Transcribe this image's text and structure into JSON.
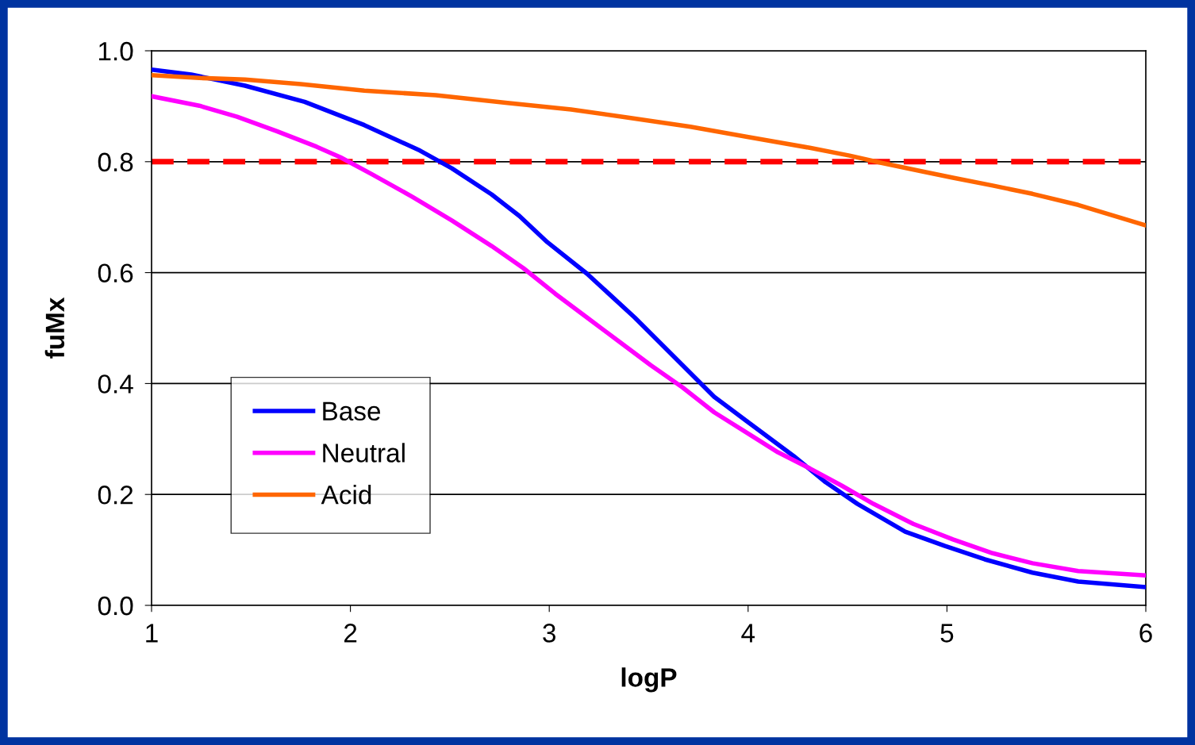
{
  "chart_data": {
    "type": "line",
    "xlabel": "logP",
    "ylabel": "fuMx",
    "xlim": [
      1,
      6
    ],
    "xticks": [
      1,
      2,
      3,
      4,
      5,
      6
    ],
    "ylim": [
      0,
      1
    ],
    "yticks": [
      {
        "value": 0,
        "label": "0.0"
      },
      {
        "value": 0.2,
        "label": "0.2"
      },
      {
        "value": 0.4,
        "label": "0.4"
      },
      {
        "value": 0.6,
        "label": "0.6"
      },
      {
        "value": 0.8,
        "label": "0.8"
      },
      {
        "value": 1,
        "label": "1.0"
      }
    ],
    "grid": "y",
    "legend": "bottom left",
    "line_style": "solid",
    "marker": "none",
    "ref_lines": [
      {
        "axis": "y",
        "value": 0.8,
        "label": null,
        "color": "#ff0000",
        "line_style": "dashed"
      }
    ],
    "series": [
      {
        "name": "Base",
        "color": "#0000ff",
        "x": [
          1,
          1.2,
          1.47,
          1.77,
          2.07,
          2.35,
          2.51,
          2.71,
          2.85,
          2.99,
          3.19,
          3.43,
          3.67,
          3.83,
          3.99,
          4.23,
          4.39,
          4.55,
          4.79,
          4.99,
          5.19,
          5.43,
          5.66,
          6
        ],
        "values": [
          0.966,
          0.957,
          0.937,
          0.908,
          0.866,
          0.82,
          0.788,
          0.741,
          0.702,
          0.655,
          0.598,
          0.519,
          0.433,
          0.376,
          0.333,
          0.269,
          0.222,
          0.183,
          0.133,
          0.107,
          0.083,
          0.059,
          0.043,
          0.033
        ]
      },
      {
        "name": "Neutral",
        "color": "#ff00ff",
        "x": [
          1,
          1.24,
          1.43,
          1.63,
          1.83,
          1.95,
          2.11,
          2.31,
          2.51,
          2.71,
          2.87,
          3.03,
          3.19,
          3.35,
          3.51,
          3.67,
          3.83,
          3.99,
          4.15,
          4.31,
          4.47,
          4.63,
          4.83,
          5.03,
          5.23,
          5.43,
          5.66,
          6
        ],
        "values": [
          0.918,
          0.901,
          0.881,
          0.855,
          0.827,
          0.808,
          0.777,
          0.737,
          0.694,
          0.648,
          0.608,
          0.562,
          0.519,
          0.476,
          0.433,
          0.393,
          0.348,
          0.312,
          0.276,
          0.247,
          0.216,
          0.183,
          0.147,
          0.119,
          0.094,
          0.076,
          0.062,
          0.054
        ]
      },
      {
        "name": "Acid",
        "color": "#ff6600",
        "x": [
          1,
          1.24,
          1.47,
          1.75,
          2.07,
          2.43,
          2.79,
          3.11,
          3.39,
          3.71,
          3.99,
          4.31,
          4.51,
          4.67,
          4.87,
          5.03,
          5.23,
          5.43,
          5.66,
          6
        ],
        "values": [
          0.956,
          0.951,
          0.948,
          0.94,
          0.928,
          0.92,
          0.906,
          0.894,
          0.88,
          0.863,
          0.845,
          0.825,
          0.811,
          0.798,
          0.783,
          0.771,
          0.757,
          0.742,
          0.722,
          0.685
        ]
      }
    ]
  }
}
